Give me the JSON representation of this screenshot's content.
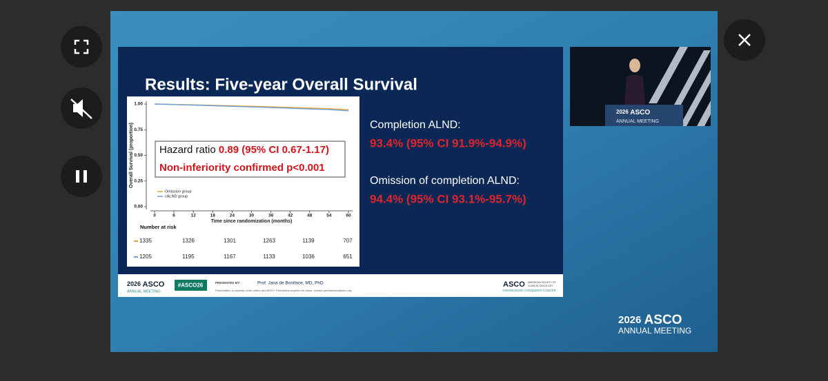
{
  "slide": {
    "title": "Results: Five-year Overall Survival",
    "hazard_ratio_label": "Hazard ratio",
    "hazard_ratio_value": "0.89 (95% CI 0.67-1.17)",
    "non_inferiority": "Non-inferiority confirmed p<0.001",
    "results": [
      {
        "label": "Completion ALND:",
        "value": "93.4% (95% CI 91.9%-94.9%)"
      },
      {
        "label": "Omission of completion ALND:",
        "value": "94.4% (95% CI 93.1%-95.7%)"
      }
    ],
    "risk_table": {
      "title": "Number at risk",
      "rows": [
        [
          1335,
          1326,
          1301,
          1263,
          1139,
          707
        ],
        [
          1205,
          1195,
          1167,
          1133,
          1036,
          651
        ]
      ]
    },
    "footer": {
      "year": "2026",
      "brand": "ASCO",
      "meeting": "ANNUAL MEETING",
      "hashtag": "#ASCO26",
      "presented_by": "PRESENTED BY:",
      "presenter": "Prof. Jana de Boniface, MD, PhD",
      "notice": "Presentation is property of the author and ASCO. Permission required for reuse; contact permissions@asco.org",
      "org": "ASCO",
      "org_full_1": "AMERICAN SOCIETY OF",
      "org_full_2": "CLINICAL ONCOLOGY",
      "tagline": "KNOWLEDGE CONQUERS CANCER"
    }
  },
  "inset": {
    "year": "2026",
    "brand": "ASCO",
    "meeting": "ANNUAL MEETING"
  },
  "watermark": {
    "year": "2026",
    "brand": "ASCO",
    "meeting": "ANNUAL MEETING"
  },
  "chart_data": {
    "type": "line",
    "y_label": "Overall Survival (proportion)",
    "x_label": "Time since randomization (months)",
    "x": [
      0,
      6,
      12,
      18,
      24,
      30,
      36,
      42,
      48,
      54,
      60
    ],
    "series": [
      {
        "name": "Omission group",
        "color": "#e8a33a",
        "values": [
          1.0,
          0.996,
          0.992,
          0.988,
          0.983,
          0.978,
          0.973,
          0.967,
          0.961,
          0.955,
          0.944
        ]
      },
      {
        "name": "cALND group",
        "color": "#6a9fd8",
        "values": [
          1.0,
          0.995,
          0.99,
          0.984,
          0.978,
          0.972,
          0.966,
          0.959,
          0.952,
          0.946,
          0.934
        ]
      }
    ],
    "xlim": [
      0,
      60
    ],
    "ylim": [
      0,
      1
    ],
    "xticks": [
      0,
      6,
      12,
      18,
      24,
      30,
      36,
      42,
      48,
      54,
      60
    ],
    "yticks": [
      {
        "value": 0,
        "label": "0.00"
      },
      {
        "value": 0.25,
        "label": "0.25"
      },
      {
        "value": 0.5,
        "label": "0.50"
      },
      {
        "value": 0.75,
        "label": "0.75"
      },
      {
        "value": 1,
        "label": "1.00"
      }
    ]
  }
}
